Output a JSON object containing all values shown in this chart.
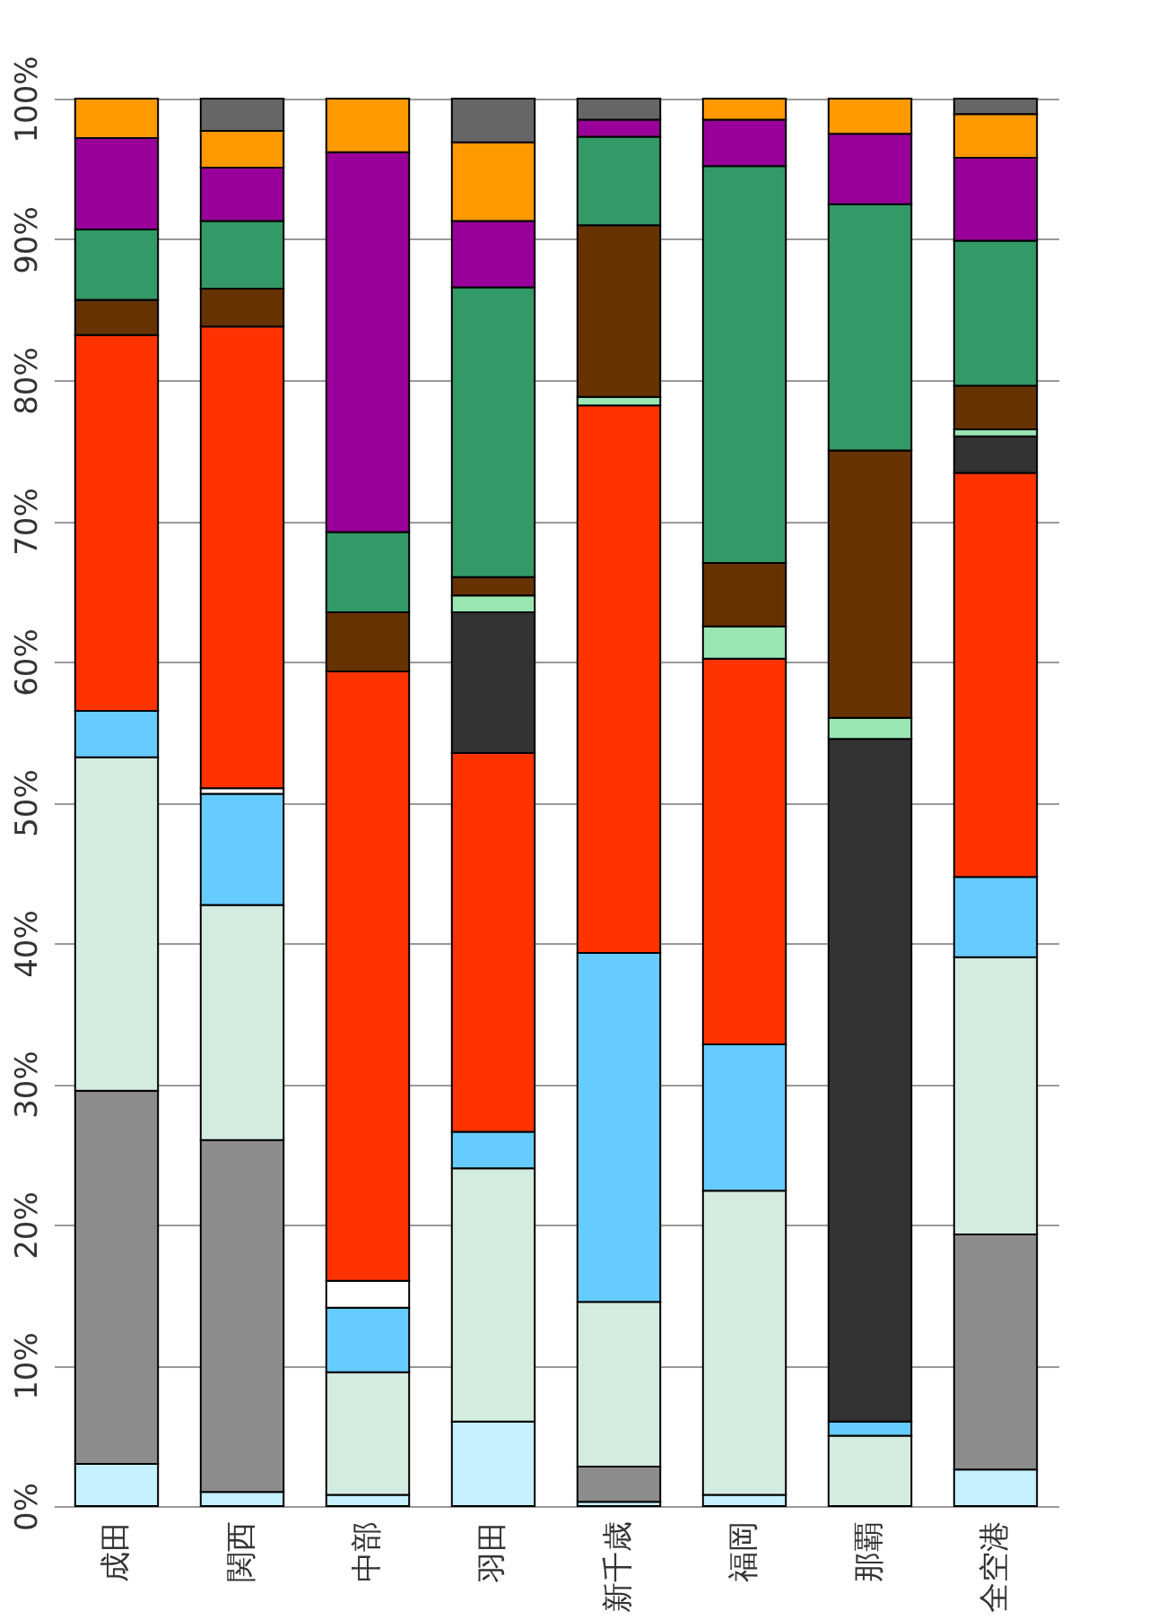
{
  "chart_data": {
    "type": "bar",
    "stacked": true,
    "categories": [
      "成田",
      "関西",
      "中部",
      "羽田",
      "新千歳",
      "福岡",
      "那覇",
      "全空港"
    ],
    "series": [
      {
        "color": "#c6f0ff",
        "values": [
          3,
          1,
          0.8,
          6,
          0.3,
          0.8,
          null,
          2.6
        ]
      },
      {
        "color": "#8c8c8c",
        "values": [
          26.5,
          25,
          null,
          null,
          2.5,
          null,
          null,
          16.7
        ]
      },
      {
        "color": "#d4ebdf",
        "values": [
          23.7,
          16.7,
          8.7,
          18,
          11.7,
          21.6,
          5,
          19.7
        ]
      },
      {
        "color": "#66ccff",
        "values": [
          3.3,
          7.9,
          4.6,
          2.6,
          24.8,
          10.4,
          1,
          5.7
        ]
      },
      {
        "color": "#ffffff",
        "values": [
          null,
          0.4,
          1.9,
          null,
          null,
          null,
          null,
          null
        ]
      },
      {
        "color": "#ff3300",
        "values": [
          26.7,
          32.8,
          43.3,
          26.9,
          38.9,
          27.4,
          null,
          28.7
        ]
      },
      {
        "color": "#333333",
        "values": [
          null,
          null,
          null,
          10,
          null,
          null,
          48.5,
          2.6
        ]
      },
      {
        "color": "#99e6b3",
        "values": [
          null,
          null,
          null,
          1.2,
          0.6,
          2.3,
          1.5,
          0.5
        ]
      },
      {
        "color": "#663300",
        "values": [
          2.5,
          2.7,
          4.2,
          1.3,
          12.2,
          4.5,
          19,
          3.1
        ]
      },
      {
        "color": "#339966",
        "values": [
          5,
          4.8,
          5.7,
          20.6,
          6.3,
          28.2,
          17.5,
          10.3
        ]
      },
      {
        "color": "#990099",
        "values": [
          6.5,
          3.8,
          27,
          4.7,
          1.2,
          3.3,
          5,
          5.9
        ]
      },
      {
        "color": "#ff9900",
        "values": [
          2.8,
          2.6,
          3.8,
          5.6,
          null,
          1.5,
          2.5,
          3.1
        ]
      },
      {
        "color": "#666666",
        "values": [
          null,
          2.3,
          null,
          3.1,
          1.5,
          null,
          null,
          1.1
        ]
      }
    ],
    "ylim": [
      0,
      100
    ],
    "yticks": [
      {
        "value": 0,
        "label": "0%"
      },
      {
        "value": 10,
        "label": "10%"
      },
      {
        "value": 20,
        "label": "20%"
      },
      {
        "value": 30,
        "label": "30%"
      },
      {
        "value": 40,
        "label": "40%"
      },
      {
        "value": 50,
        "label": "50%"
      },
      {
        "value": 60,
        "label": "60%"
      },
      {
        "value": 70,
        "label": "70%"
      },
      {
        "value": 80,
        "label": "80%"
      },
      {
        "value": 90,
        "label": "90%"
      },
      {
        "value": 100,
        "label": "100%"
      }
    ],
    "grid": "y",
    "legend": false
  }
}
